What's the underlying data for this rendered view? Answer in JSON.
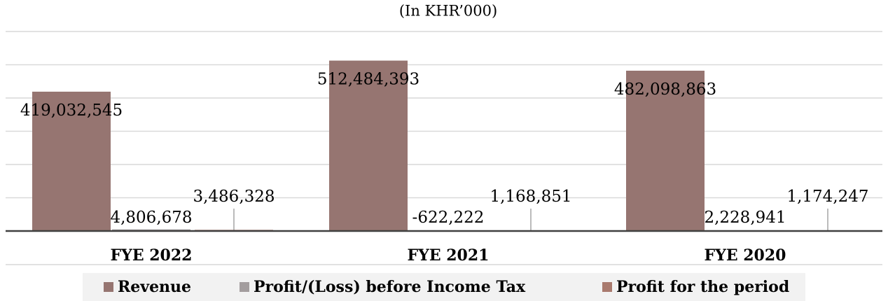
{
  "chart_data": {
    "type": "bar",
    "subtitle": "(In KHR’000)",
    "categories": [
      "FYE 2022",
      "FYE 2021",
      "FYE 2020"
    ],
    "series": [
      {
        "name": "Revenue",
        "color": "#967571",
        "values": [
          419032545,
          512484393,
          482098863
        ],
        "value_labels": [
          "419,032,545",
          "512,484,393",
          "482,098,863"
        ]
      },
      {
        "name": "Profit/(Loss) before Income Tax",
        "color": "#a39d9e",
        "values": [
          4806678,
          -622222,
          2228941
        ],
        "value_labels": [
          "4,806,678",
          "-622,222",
          "2,228,941"
        ]
      },
      {
        "name": "Profit for the period",
        "color": "#a97a6e",
        "values": [
          3486328,
          1168851,
          1174247
        ],
        "value_labels": [
          "3,486,328",
          "1,168,851",
          "1,174,247"
        ]
      }
    ],
    "ylim": [
      0,
      600000000
    ],
    "yticks": [
      0,
      100000000,
      200000000,
      300000000,
      400000000,
      500000000,
      600000000
    ],
    "grid": true
  }
}
